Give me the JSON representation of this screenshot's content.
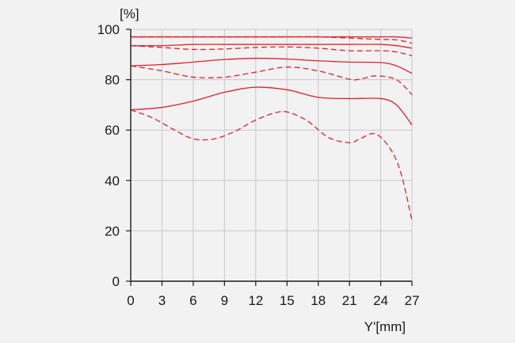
{
  "chart_data": {
    "type": "line",
    "title": "",
    "ylabel": "[%]",
    "xlabel": "Y'[mm]",
    "xlim": [
      0,
      27
    ],
    "ylim": [
      0,
      100
    ],
    "xticks": [
      0,
      3,
      6,
      9,
      12,
      15,
      18,
      21,
      24,
      27
    ],
    "yticks": [
      0,
      20,
      40,
      60,
      80,
      100
    ],
    "x_tick_labels": [
      "0",
      "3",
      "6",
      "9",
      "12",
      "15",
      "18",
      "21",
      "24",
      "27"
    ],
    "y_tick_labels": [
      "0",
      "20",
      "40",
      "60",
      "80",
      "100"
    ],
    "grid": true,
    "colors": {
      "series": "#e0212b",
      "grid": "#c8c8c8",
      "axis": "#1a1a1a"
    },
    "series": [
      {
        "style": "solid",
        "x": [
          0,
          3,
          6,
          9,
          12,
          15,
          18,
          21,
          24,
          25.5,
          27
        ],
        "y": [
          97,
          97,
          97,
          97,
          97,
          97,
          97,
          97,
          97,
          97,
          96.5
        ]
      },
      {
        "style": "dashed",
        "x": [
          0,
          3,
          6,
          9,
          12,
          15,
          18,
          21,
          24,
          25.5,
          27
        ],
        "y": [
          97,
          97,
          97,
          97,
          97,
          97,
          97,
          96.5,
          96,
          95.8,
          94.5
        ]
      },
      {
        "style": "solid",
        "x": [
          0,
          3,
          6,
          9,
          12,
          15,
          18,
          21,
          24,
          25.5,
          27
        ],
        "y": [
          93.5,
          93.5,
          94,
          94,
          94,
          94,
          94,
          94,
          94,
          93.5,
          92.5
        ]
      },
      {
        "style": "dashed",
        "x": [
          0,
          3,
          6,
          9,
          12,
          15,
          18,
          21,
          24,
          25.5,
          27
        ],
        "y": [
          93.5,
          92.8,
          92,
          92.2,
          92.8,
          93,
          92.5,
          91.5,
          91.5,
          91,
          89.5
        ]
      },
      {
        "style": "solid",
        "x": [
          0,
          3,
          6,
          9,
          12,
          15,
          18,
          21,
          24,
          25.5,
          27
        ],
        "y": [
          85.5,
          86,
          87,
          88,
          88.5,
          88.2,
          87.5,
          87,
          86.8,
          85.5,
          82.5
        ]
      },
      {
        "style": "dashed",
        "x": [
          0,
          3,
          6,
          9,
          12,
          15,
          18,
          21,
          22,
          23.5,
          25.5,
          27
        ],
        "y": [
          85.5,
          83.5,
          81,
          81,
          83,
          85,
          83.5,
          80.2,
          80.2,
          81.5,
          80,
          74
        ]
      },
      {
        "style": "solid",
        "x": [
          0,
          3,
          6,
          9,
          12,
          15,
          18,
          21,
          24,
          25.5,
          27
        ],
        "y": [
          68,
          69,
          71.5,
          75,
          77,
          76,
          73,
          72.5,
          72.5,
          70,
          62
        ]
      },
      {
        "style": "dashed",
        "x": [
          0,
          2,
          4,
          6,
          8,
          10,
          12,
          14,
          15.2,
          17,
          19,
          21,
          22,
          23.5,
          25,
          26,
          27
        ],
        "y": [
          68,
          65,
          60.5,
          56.5,
          56.5,
          59.5,
          64,
          67,
          67,
          63.5,
          57,
          55,
          56.5,
          58.5,
          52,
          42,
          24
        ]
      }
    ]
  }
}
